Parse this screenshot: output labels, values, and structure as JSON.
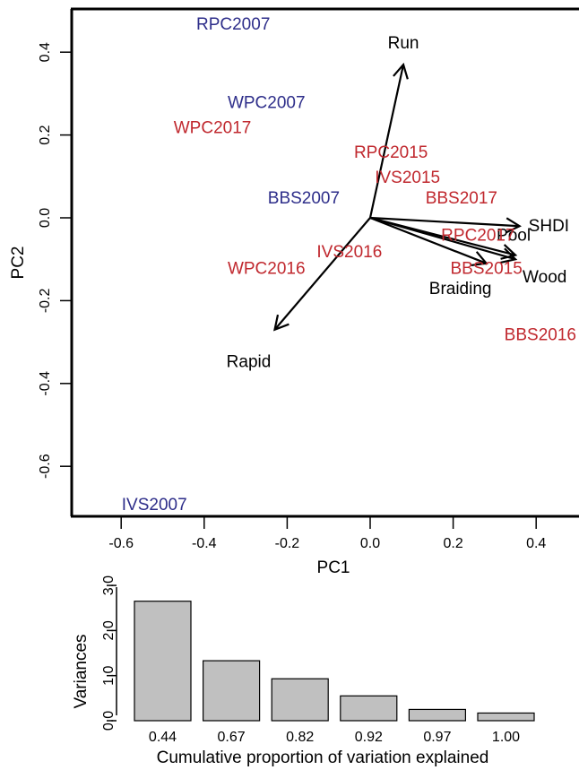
{
  "chart_data": [
    {
      "type": "scatter",
      "subtype": "pca-biplot",
      "title": "",
      "xlabel": "PC1",
      "ylabel": "PC2",
      "xlim": [
        -0.72,
        0.5
      ],
      "ylim": [
        -0.72,
        0.5
      ],
      "x_ticks": [
        "-0.6",
        "-0.4",
        "-0.2",
        "0.0",
        "0.2",
        "0.4"
      ],
      "y_ticks": [
        "-0.6",
        "-0.4",
        "-0.2",
        "0.0",
        "0.2",
        "0.4"
      ],
      "grid": false,
      "colors": {
        "site_2007": "#2e2e8a",
        "site_later": "#c0282e",
        "loading": "#000000"
      },
      "sites": [
        {
          "label": "RPC2007",
          "x": -0.33,
          "y": 0.47,
          "group": "site_2007"
        },
        {
          "label": "WPC2007",
          "x": -0.25,
          "y": 0.28,
          "group": "site_2007"
        },
        {
          "label": "WPC2017",
          "x": -0.38,
          "y": 0.22,
          "group": "site_later"
        },
        {
          "label": "RPC2015",
          "x": 0.05,
          "y": 0.16,
          "group": "site_later"
        },
        {
          "label": "IVS2015",
          "x": 0.09,
          "y": 0.1,
          "group": "site_later"
        },
        {
          "label": "BBS2007",
          "x": -0.16,
          "y": 0.05,
          "group": "site_2007"
        },
        {
          "label": "BBS2017",
          "x": 0.22,
          "y": 0.05,
          "group": "site_later"
        },
        {
          "label": "RPC2017",
          "x": 0.26,
          "y": -0.04,
          "group": "site_later"
        },
        {
          "label": "IVS2016",
          "x": -0.05,
          "y": -0.08,
          "group": "site_later"
        },
        {
          "label": "WPC2016",
          "x": -0.25,
          "y": -0.12,
          "group": "site_later"
        },
        {
          "label": "BBS2015",
          "x": 0.28,
          "y": -0.12,
          "group": "site_later"
        },
        {
          "label": "BBS2016",
          "x": 0.41,
          "y": -0.28,
          "group": "site_later"
        },
        {
          "label": "IVS2007",
          "x": -0.52,
          "y": -0.69,
          "group": "site_2007"
        }
      ],
      "loadings": [
        {
          "label": "Run",
          "x": 0.08,
          "y": 0.37
        },
        {
          "label": "SHDI",
          "x": 0.36,
          "y": -0.02
        },
        {
          "label": "Pool",
          "x": 0.35,
          "y": -0.09
        },
        {
          "label": "Wood",
          "x": 0.35,
          "y": -0.1
        },
        {
          "label": "Braiding",
          "x": 0.28,
          "y": -0.11
        },
        {
          "label": "Rapid",
          "x": -0.23,
          "y": -0.27
        }
      ]
    },
    {
      "type": "bar",
      "subtype": "scree-plot",
      "title": "",
      "xlabel": "Cumulative proportion of variation explained",
      "ylabel": "Variances",
      "categories": [
        "0.44",
        "0.67",
        "0.82",
        "0.92",
        "0.97",
        "1.00"
      ],
      "values": [
        2.65,
        1.33,
        0.93,
        0.55,
        0.25,
        0.17
      ],
      "ylim": [
        0,
        3.0
      ],
      "y_ticks": [
        "0.0",
        "1.0",
        "2.0",
        "3.0"
      ],
      "bar_color": "#c0c0c0"
    }
  ]
}
